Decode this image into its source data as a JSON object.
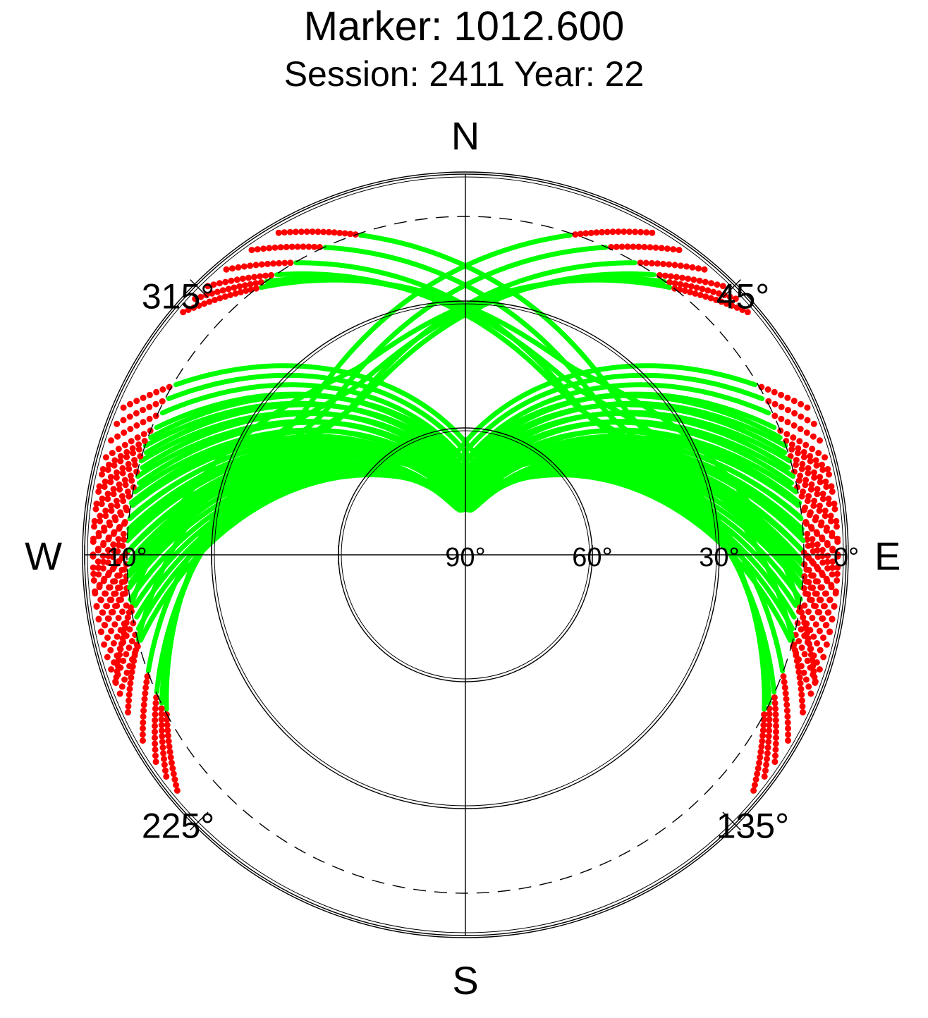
{
  "chart_data": {
    "type": "scatter",
    "title": "Marker: 1012.600",
    "subtitle": "Session: 2411 Year: 22",
    "projection": "polar-sky",
    "cardinal_labels": {
      "north": "N",
      "east": "E",
      "south": "S",
      "west": "W"
    },
    "azimuth_tick_labels": [
      {
        "azimuth": 45,
        "label": "45°"
      },
      {
        "azimuth": 135,
        "label": "135°"
      },
      {
        "azimuth": 225,
        "label": "225°"
      },
      {
        "azimuth": 315,
        "label": "315°"
      }
    ],
    "elevation_tick_labels": [
      {
        "elevation": 90,
        "label": "90°"
      },
      {
        "elevation": 60,
        "label": "60°"
      },
      {
        "elevation": 30,
        "label": "30°"
      },
      {
        "elevation": 0,
        "label": "0°"
      },
      {
        "elevation": 10,
        "label": "10°",
        "side": "west"
      }
    ],
    "elevation_circles": [
      60,
      30,
      0
    ],
    "cutoff_elevation": 10,
    "colors": {
      "track": "#00ff00",
      "flagged": "#ff0000",
      "axes": "#000000"
    },
    "arc_groups": [
      {
        "apex_az": 5,
        "apex_el": 80,
        "spread": 22,
        "count": 16
      },
      {
        "apex_az": 355,
        "apex_el": 80,
        "spread": 22,
        "count": 16
      },
      {
        "apex_az": 40,
        "apex_el": 48,
        "spread": 12,
        "count": 6
      },
      {
        "apex_az": 320,
        "apex_el": 48,
        "spread": 12,
        "count": 6
      }
    ]
  }
}
